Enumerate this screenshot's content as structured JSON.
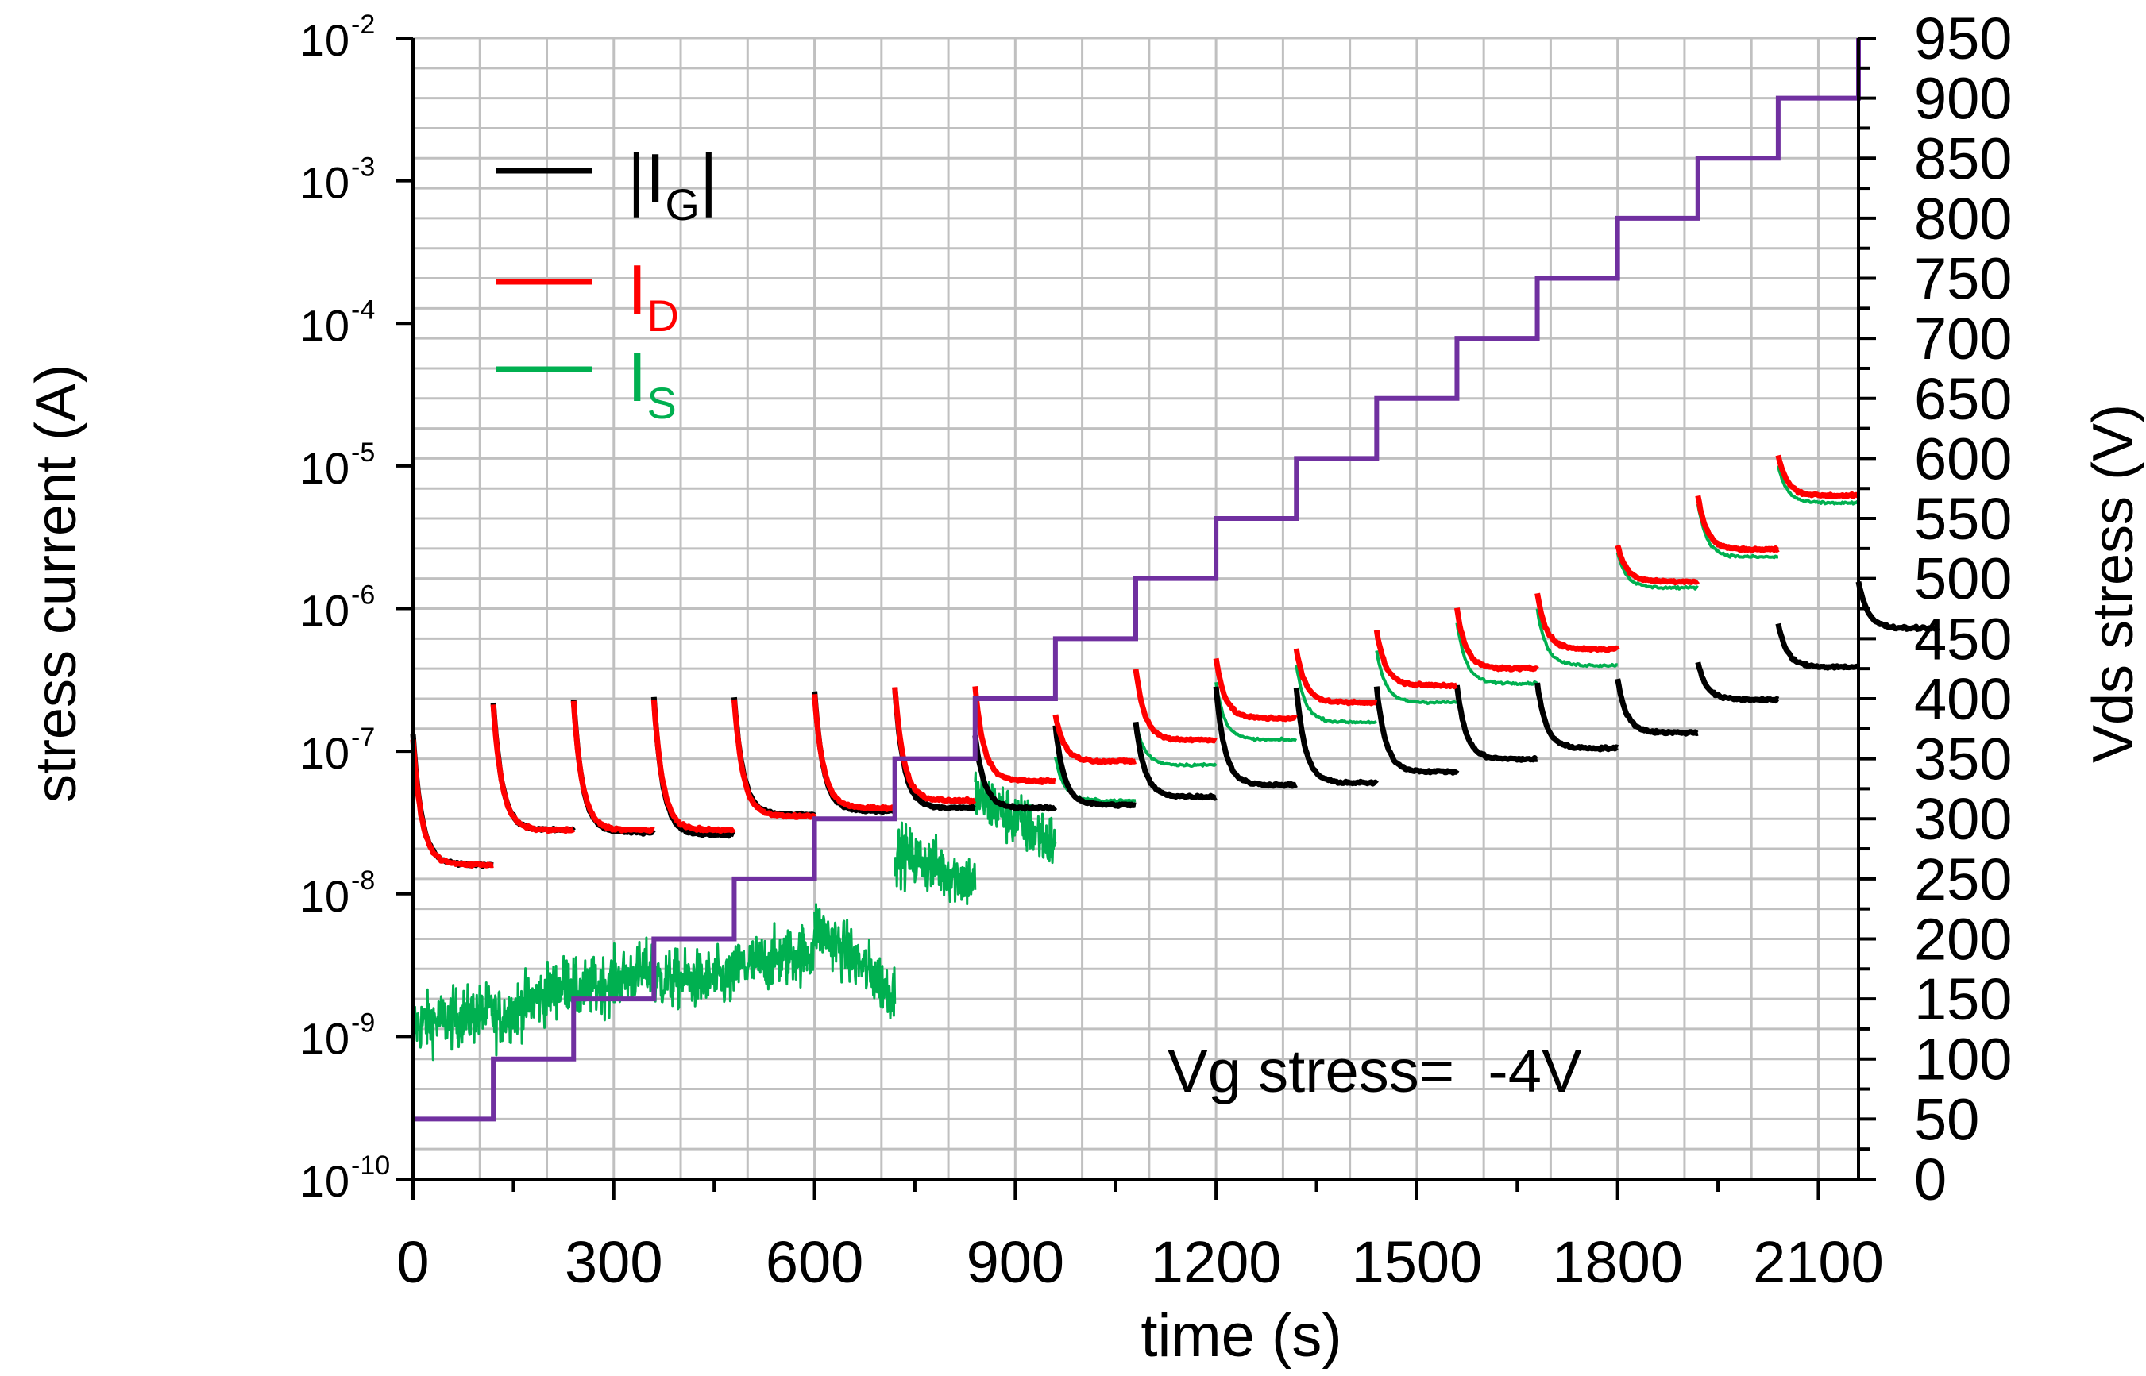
{
  "chart_data": {
    "type": "line",
    "x_axis": {
      "label": "time (s)",
      "range": [
        0,
        2160
      ],
      "ticks": [
        0,
        300,
        600,
        900,
        1200,
        1500,
        1800,
        2100
      ],
      "tick_labels": [
        "0",
        "300",
        "600",
        "900",
        "1200",
        "1500",
        "1800",
        "2100"
      ],
      "minor_tick_step": 150
    },
    "y_left": {
      "label": "stress current (A)",
      "scale": "log",
      "range_exponents": [
        -10,
        -2
      ],
      "ticks": [
        {
          "base": "10",
          "exp": "-2"
        },
        {
          "base": "10",
          "exp": "-3"
        },
        {
          "base": "10",
          "exp": "-4"
        },
        {
          "base": "10",
          "exp": "-5"
        },
        {
          "base": "10",
          "exp": "-6"
        },
        {
          "base": "10",
          "exp": "-7"
        },
        {
          "base": "10",
          "exp": "-8"
        },
        {
          "base": "10",
          "exp": "-9"
        },
        {
          "base": "10",
          "exp": "-10"
        }
      ]
    },
    "y_right": {
      "label": "Vds stress (V)",
      "range": [
        0,
        950
      ],
      "ticks": [
        "950",
        "900",
        "850",
        "800",
        "750",
        "700",
        "650",
        "600",
        "550",
        "500",
        "450",
        "400",
        "350",
        "300",
        "250",
        "200",
        "150",
        "100",
        "50",
        "0"
      ]
    },
    "grid": "on",
    "annotation": "Vg stress=  -4V",
    "segment_duration_s": 120,
    "legend": [
      {
        "name": "|I",
        "subscript": "G",
        "suffix": "|",
        "color": "#000000"
      },
      {
        "name": "I",
        "subscript": "D",
        "suffix": "",
        "color": "#ff0000"
      },
      {
        "name": "I",
        "subscript": "S",
        "suffix": "",
        "color": "#00b050"
      }
    ],
    "series": [
      {
        "name": "Vds stress",
        "axis": "right",
        "color": "#7030a0",
        "steps": [
          50,
          100,
          150,
          200,
          250,
          300,
          350,
          400,
          450,
          500,
          550,
          600,
          650,
          700,
          750,
          800,
          850,
          900,
          950
        ]
      },
      {
        "name": "|IG|",
        "axis": "left",
        "color": "#000000",
        "segments": [
          {
            "start": 1.3e-07,
            "end": 1.6e-08
          },
          {
            "start": 2.2e-07,
            "end": 2.8e-08
          },
          {
            "start": 2.3e-07,
            "end": 2.7e-08
          },
          {
            "start": 2.4e-07,
            "end": 2.6e-08
          },
          {
            "start": 2.4e-07,
            "end": 3.6e-08
          },
          {
            "start": 2.6e-07,
            "end": 3.8e-08
          },
          {
            "start": 2.8e-07,
            "end": 4e-08
          },
          {
            "start": 1.3e-07,
            "end": 4e-08
          },
          {
            "start": 1.5e-07,
            "end": 4.2e-08
          },
          {
            "start": 1.6e-07,
            "end": 4.8e-08
          },
          {
            "start": 2.8e-07,
            "end": 5.8e-08
          },
          {
            "start": 2.8e-07,
            "end": 6e-08
          },
          {
            "start": 2.8e-07,
            "end": 7.2e-08
          },
          {
            "start": 2.9e-07,
            "end": 8.8e-08
          },
          {
            "start": 3e-07,
            "end": 1.05e-07
          },
          {
            "start": 3.2e-07,
            "end": 1.35e-07
          },
          {
            "start": 4.2e-07,
            "end": 2.3e-07
          },
          {
            "start": 7.8e-07,
            "end": 3.9e-07
          },
          {
            "start": 1.55e-06,
            "end": 7.3e-07
          }
        ]
      },
      {
        "name": "ID",
        "axis": "left",
        "color": "#ff0000",
        "segments": [
          {
            "start": 1.2e-07,
            "end": 1.6e-08
          },
          {
            "start": 2.1e-07,
            "end": 2.8e-08
          },
          {
            "start": 2.2e-07,
            "end": 2.8e-08
          },
          {
            "start": 2.3e-07,
            "end": 2.8e-08
          },
          {
            "start": 2.3e-07,
            "end": 3.5e-08
          },
          {
            "start": 2.5e-07,
            "end": 4e-08
          },
          {
            "start": 2.8e-07,
            "end": 4.5e-08
          },
          {
            "start": 2.8e-07,
            "end": 6.2e-08
          },
          {
            "start": 1.8e-07,
            "end": 8.5e-08
          },
          {
            "start": 3.8e-07,
            "end": 1.2e-07
          },
          {
            "start": 4.5e-07,
            "end": 1.7e-07
          },
          {
            "start": 5.2e-07,
            "end": 2.2e-07
          },
          {
            "start": 7e-07,
            "end": 2.9e-07
          },
          {
            "start": 1e-06,
            "end": 3.8e-07
          },
          {
            "start": 1.3e-06,
            "end": 5.2e-07
          },
          {
            "start": 2.8e-06,
            "end": 1.55e-06
          },
          {
            "start": 6.2e-06,
            "end": 2.6e-06
          },
          {
            "start": 1.2e-05,
            "end": 6.2e-06
          }
        ]
      },
      {
        "name": "IS",
        "axis": "left",
        "color": "#00b050",
        "segments": [
          {
            "start": 1.2e-09,
            "end": 1.5e-09,
            "noisy": true
          },
          {
            "start": 1.3e-09,
            "end": 2.5e-09,
            "noisy": true
          },
          {
            "start": 2e-09,
            "end": 3e-09,
            "noisy": true
          },
          {
            "start": 2.5e-09,
            "end": 2.5e-09,
            "noisy": true
          },
          {
            "start": 3e-09,
            "end": 4e-09,
            "noisy": true
          },
          {
            "start": 6e-09,
            "end": 2e-09,
            "noisy": true
          },
          {
            "start": 2e-08,
            "end": 1.2e-08,
            "noisy": true
          },
          {
            "start": 5e-08,
            "end": 2.2e-08,
            "noisy": true
          },
          {
            "start": 9e-08,
            "end": 4.5e-08
          },
          {
            "start": 1.6e-07,
            "end": 8e-08
          },
          {
            "start": 3e-07,
            "end": 1.2e-07
          },
          {
            "start": 4e-07,
            "end": 1.6e-07
          },
          {
            "start": 5e-07,
            "end": 2.2e-07
          },
          {
            "start": 8e-07,
            "end": 3e-07
          },
          {
            "start": 1e-06,
            "end": 4e-07
          },
          {
            "start": 2.5e-06,
            "end": 1.4e-06
          },
          {
            "start": 5.5e-06,
            "end": 2.3e-06
          },
          {
            "start": 1e-05,
            "end": 5.5e-06
          }
        ]
      }
    ]
  }
}
